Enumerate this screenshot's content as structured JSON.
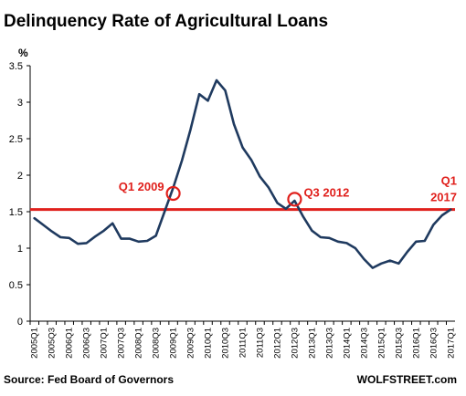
{
  "title": "Delinquency Rate of Agricultural Loans",
  "source": "Source: Fed Board of Governors",
  "watermark": "WOLFSTREET.com",
  "chart_data": {
    "type": "line",
    "title": "Delinquency Rate of Agricultural Loans",
    "ylabel": "%",
    "xlabel": "",
    "ylim": [
      0,
      3.5
    ],
    "yticks": [
      "0",
      "0.5",
      "1",
      "1.5",
      "2",
      "2.5",
      "3",
      "3.5"
    ],
    "grid": false,
    "x": [
      "2005Q1",
      "2005Q2",
      "2005Q3",
      "2005Q4",
      "2006Q1",
      "2006Q2",
      "2006Q3",
      "2006Q4",
      "2007Q1",
      "2007Q2",
      "2007Q3",
      "2007Q4",
      "2008Q1",
      "2008Q2",
      "2008Q3",
      "2008Q4",
      "2009Q1",
      "2009Q2",
      "2009Q3",
      "2009Q4",
      "2010Q1",
      "2010Q2",
      "2010Q3",
      "2010Q4",
      "2011Q1",
      "2011Q2",
      "2011Q3",
      "2011Q4",
      "2012Q1",
      "2012Q2",
      "2012Q3",
      "2012Q4",
      "2013Q1",
      "2013Q2",
      "2013Q3",
      "2013Q4",
      "2014Q1",
      "2014Q2",
      "2014Q3",
      "2014Q4",
      "2015Q1",
      "2015Q2",
      "2015Q3",
      "2015Q4",
      "2016Q1",
      "2016Q2",
      "2016Q3",
      "2016Q4",
      "2017Q1"
    ],
    "xticklabels": [
      "2005Q1",
      "2005Q3",
      "2006Q1",
      "2006Q3",
      "2007Q1",
      "2007Q3",
      "2008Q1",
      "2008Q3",
      "2009Q1",
      "2009Q3",
      "2010Q1",
      "2010Q3",
      "2011Q1",
      "2011Q3",
      "2012Q1",
      "2012Q3",
      "2013Q1",
      "2013Q3",
      "2014Q1",
      "2014Q3",
      "2015Q1",
      "2015Q3",
      "2016Q1",
      "2016Q3",
      "2017Q1"
    ],
    "series": [
      {
        "color": "#1f3a5f",
        "values": [
          1.41,
          1.32,
          1.23,
          1.15,
          1.14,
          1.06,
          1.07,
          1.16,
          1.24,
          1.34,
          1.13,
          1.13,
          1.09,
          1.1,
          1.17,
          1.5,
          1.83,
          2.2,
          2.63,
          3.11,
          3.02,
          3.3,
          3.16,
          2.7,
          2.38,
          2.21,
          1.98,
          1.83,
          1.62,
          1.54,
          1.65,
          1.43,
          1.24,
          1.15,
          1.14,
          1.09,
          1.07,
          1.0,
          0.85,
          0.73,
          0.79,
          0.83,
          0.79,
          0.95,
          1.09,
          1.1,
          1.32,
          1.45,
          1.53
        ]
      }
    ],
    "reference_line": {
      "value": 1.53,
      "color": "#e0201c"
    },
    "annotations": [
      {
        "label": "Q1 2009",
        "x": "2009Q1",
        "y": 1.75
      },
      {
        "label": "Q3 2012",
        "x": "2012Q3",
        "y": 1.67
      },
      {
        "label": "Q1",
        "label2": "2017",
        "x": "2017Q1",
        "y": 1.53
      }
    ],
    "annotation_color": "#e0201c"
  }
}
